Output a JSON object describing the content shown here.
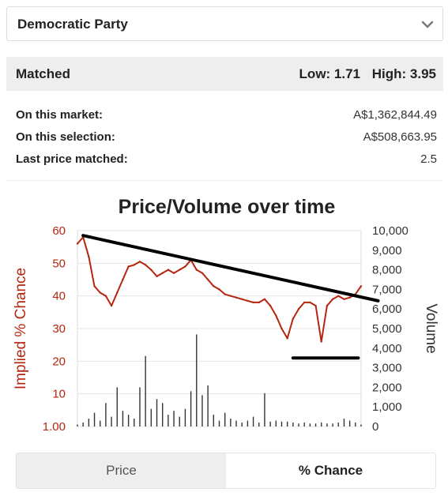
{
  "selector": {
    "value": "Democratic Party",
    "icon": "chevron-down-icon"
  },
  "matched": {
    "label": "Matched",
    "low": "Low: 1.71",
    "high": "High: 3.95"
  },
  "stats": [
    {
      "key": "On this market:",
      "value": "A$1,362,844.49"
    },
    {
      "key": "On this selection:",
      "value": "A$508,663.95"
    },
    {
      "key": "Last price matched:",
      "value": "2.5"
    }
  ],
  "toggle": {
    "price": "Price",
    "chance": "% Chance",
    "selected": "chance"
  },
  "chart_data": {
    "type": "line",
    "title": "Price/Volume over time",
    "ylabel": "Implied % Chance",
    "y2label": "Volume",
    "ylim": [
      0,
      60
    ],
    "y2lim": [
      0,
      10000
    ],
    "yticks": [
      "60",
      "50",
      "40",
      "30",
      "20",
      "10",
      "1.00"
    ],
    "y2ticks": [
      "10,000",
      "9,000",
      "8,000",
      "7,000",
      "6,000",
      "5,000",
      "4,000",
      "3,000",
      "2,000",
      "1,000",
      "0"
    ],
    "series_color": "#b5250f",
    "volume_color": "#333333",
    "price_series": {
      "x": [
        0,
        2,
        4,
        6,
        8,
        10,
        12,
        14,
        16,
        18,
        20,
        22,
        24,
        26,
        28,
        30,
        32,
        34,
        36,
        38,
        40,
        42,
        44,
        46,
        48,
        50,
        52,
        54,
        56,
        58,
        60,
        62,
        64,
        66,
        68,
        70,
        72,
        74,
        76,
        78,
        80,
        82,
        84,
        86,
        88,
        90,
        92,
        94,
        96,
        98,
        100
      ],
      "values": [
        56,
        58,
        52,
        43,
        41,
        40,
        37,
        41,
        45,
        49,
        49.5,
        50.5,
        49.5,
        48,
        46,
        47,
        48,
        47,
        48,
        49,
        51,
        48,
        47,
        45,
        43,
        42,
        40.5,
        40,
        39.5,
        39,
        38.5,
        38,
        38,
        39,
        37,
        34,
        30,
        27,
        33,
        36,
        38,
        38,
        37,
        26,
        37,
        39,
        40,
        39,
        39.5,
        40.5,
        43
      ]
    },
    "volume_series": {
      "x": [
        0,
        2,
        4,
        6,
        8,
        10,
        12,
        14,
        16,
        18,
        20,
        22,
        24,
        26,
        28,
        30,
        32,
        34,
        36,
        38,
        40,
        42,
        44,
        46,
        48,
        50,
        52,
        54,
        56,
        58,
        60,
        62,
        64,
        66,
        68,
        70,
        72,
        74,
        76,
        78,
        80,
        82,
        84,
        86,
        88,
        90,
        92,
        94,
        96,
        98,
        100
      ],
      "values": [
        100,
        200,
        400,
        700,
        300,
        1200,
        500,
        2000,
        800,
        600,
        400,
        2000,
        3600,
        900,
        1400,
        1200,
        600,
        800,
        500,
        900,
        1800,
        4700,
        1600,
        2100,
        600,
        300,
        700,
        400,
        300,
        200,
        300,
        500,
        200,
        1700,
        250,
        300,
        250,
        250,
        200,
        150,
        200,
        150,
        150,
        200,
        150,
        150,
        200,
        400,
        300,
        200,
        100
      ]
    },
    "annotations": [
      {
        "type": "trend-line",
        "from": [
          2,
          58.5
        ],
        "to": [
          106,
          38.5
        ]
      },
      {
        "type": "support-line",
        "from": [
          76,
          21
        ],
        "to": [
          99,
          21
        ]
      }
    ]
  }
}
